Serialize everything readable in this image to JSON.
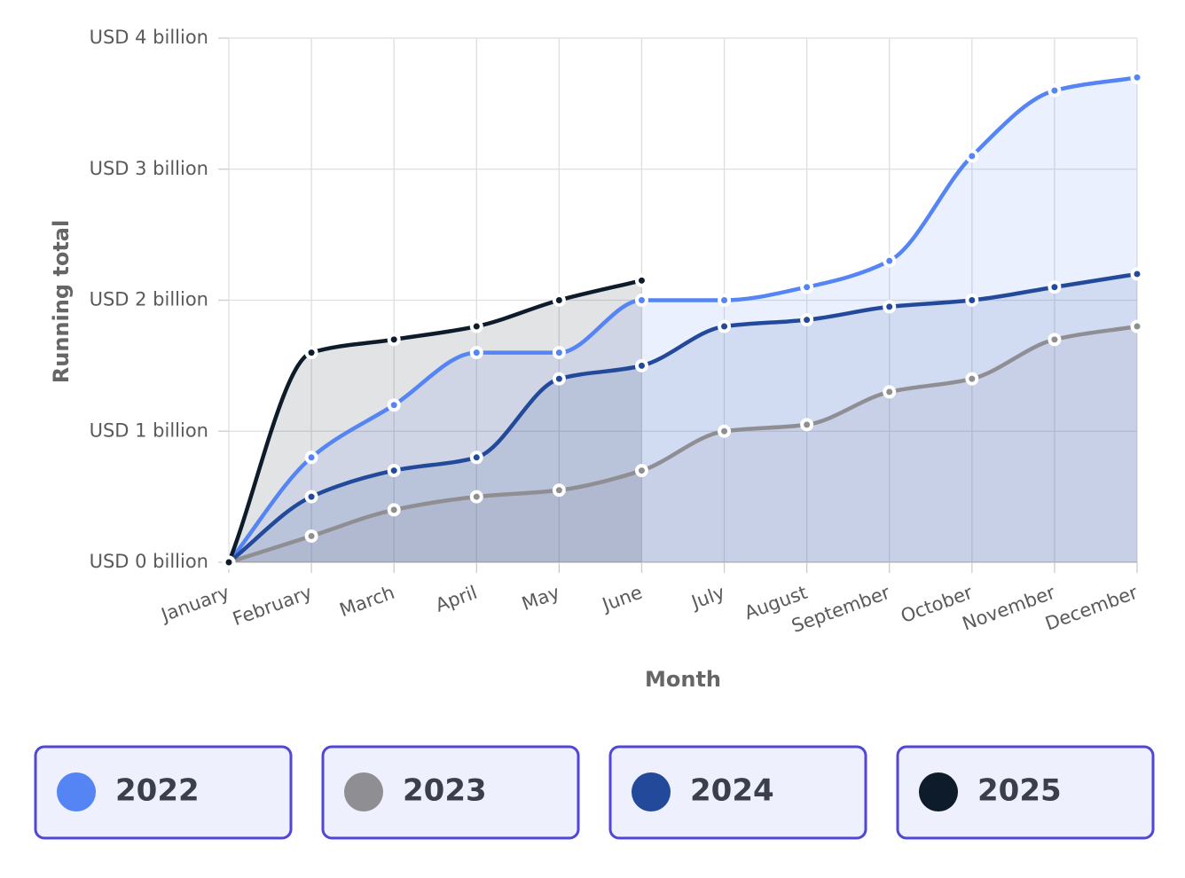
{
  "chart_data": {
    "type": "line",
    "x_label": "Month",
    "y_label": "Running total",
    "categories": [
      "January",
      "February",
      "March",
      "April",
      "May",
      "June",
      "July",
      "August",
      "September",
      "October",
      "November",
      "December"
    ],
    "ylim": [
      0,
      4
    ],
    "yticks": [
      {
        "value": 0,
        "label": "USD 0 billion"
      },
      {
        "value": 1,
        "label": "USD 1 billion"
      },
      {
        "value": 2,
        "label": "USD 2 billion"
      },
      {
        "value": 3,
        "label": "USD 3 billion"
      },
      {
        "value": 4,
        "label": "USD 4 billion"
      }
    ],
    "grid": true,
    "series": [
      {
        "name": "2022",
        "color": "#5585f5",
        "values": [
          0,
          0.8,
          1.2,
          1.6,
          1.6,
          2.0,
          2.0,
          2.1,
          2.3,
          3.1,
          3.6,
          3.7
        ]
      },
      {
        "name": "2023",
        "color": "#8e8e93",
        "values": [
          0,
          0.2,
          0.4,
          0.5,
          0.55,
          0.7,
          1.0,
          1.05,
          1.3,
          1.4,
          1.7,
          1.8
        ]
      },
      {
        "name": "2024",
        "color": "#234a9a",
        "values": [
          0,
          0.5,
          0.7,
          0.8,
          1.4,
          1.5,
          1.8,
          1.85,
          1.95,
          2.0,
          2.1,
          2.2
        ]
      },
      {
        "name": "2025",
        "color": "#0d1b2a",
        "values": [
          0,
          1.6,
          1.7,
          1.8,
          2.0,
          2.15,
          null,
          null,
          null,
          null,
          null,
          null
        ]
      }
    ]
  }
}
